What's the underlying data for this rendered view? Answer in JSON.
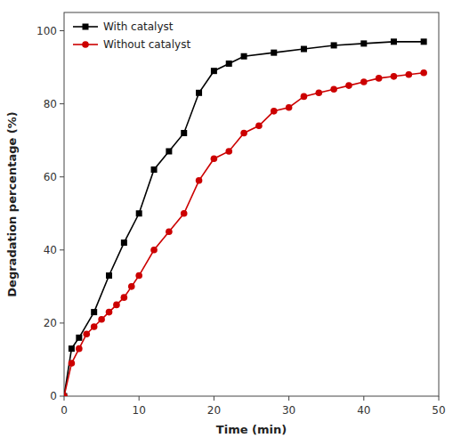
{
  "chart_data": {
    "type": "line",
    "x_label": "Time (min)",
    "y_label": "Degradation percentage (%)",
    "xlim": [
      0,
      50
    ],
    "ylim": [
      0,
      105
    ],
    "xticks": [
      0,
      10,
      20,
      30,
      40,
      50
    ],
    "yticks": [
      0,
      20,
      40,
      60,
      80,
      100
    ],
    "grid": false,
    "legend": "upper-left",
    "series": [
      {
        "name": "With catalyst",
        "color": "#000000",
        "marker": "square",
        "x": [
          0,
          1,
          2,
          4,
          6,
          8,
          10,
          12,
          14,
          16,
          18,
          20,
          22,
          24,
          28,
          32,
          36,
          40,
          44,
          48
        ],
        "values": [
          0,
          13,
          16,
          23,
          33,
          42,
          50,
          62,
          67,
          72,
          83,
          89,
          91,
          93,
          94,
          95,
          96,
          96.5,
          97,
          97
        ]
      },
      {
        "name": "Without catalyst",
        "color": "#cc0000",
        "marker": "circle",
        "x": [
          0,
          1,
          2,
          3,
          4,
          5,
          6,
          7,
          8,
          9,
          10,
          12,
          14,
          16,
          18,
          20,
          22,
          24,
          26,
          28,
          30,
          32,
          34,
          36,
          38,
          40,
          42,
          44,
          46,
          48
        ],
        "values": [
          0,
          9,
          13,
          17,
          19,
          21,
          23,
          25,
          27,
          30,
          33,
          40,
          45,
          50,
          59,
          65,
          67,
          72,
          74,
          78,
          79,
          82,
          83,
          84,
          85,
          86,
          87,
          87.5,
          88,
          88.5
        ]
      }
    ]
  }
}
